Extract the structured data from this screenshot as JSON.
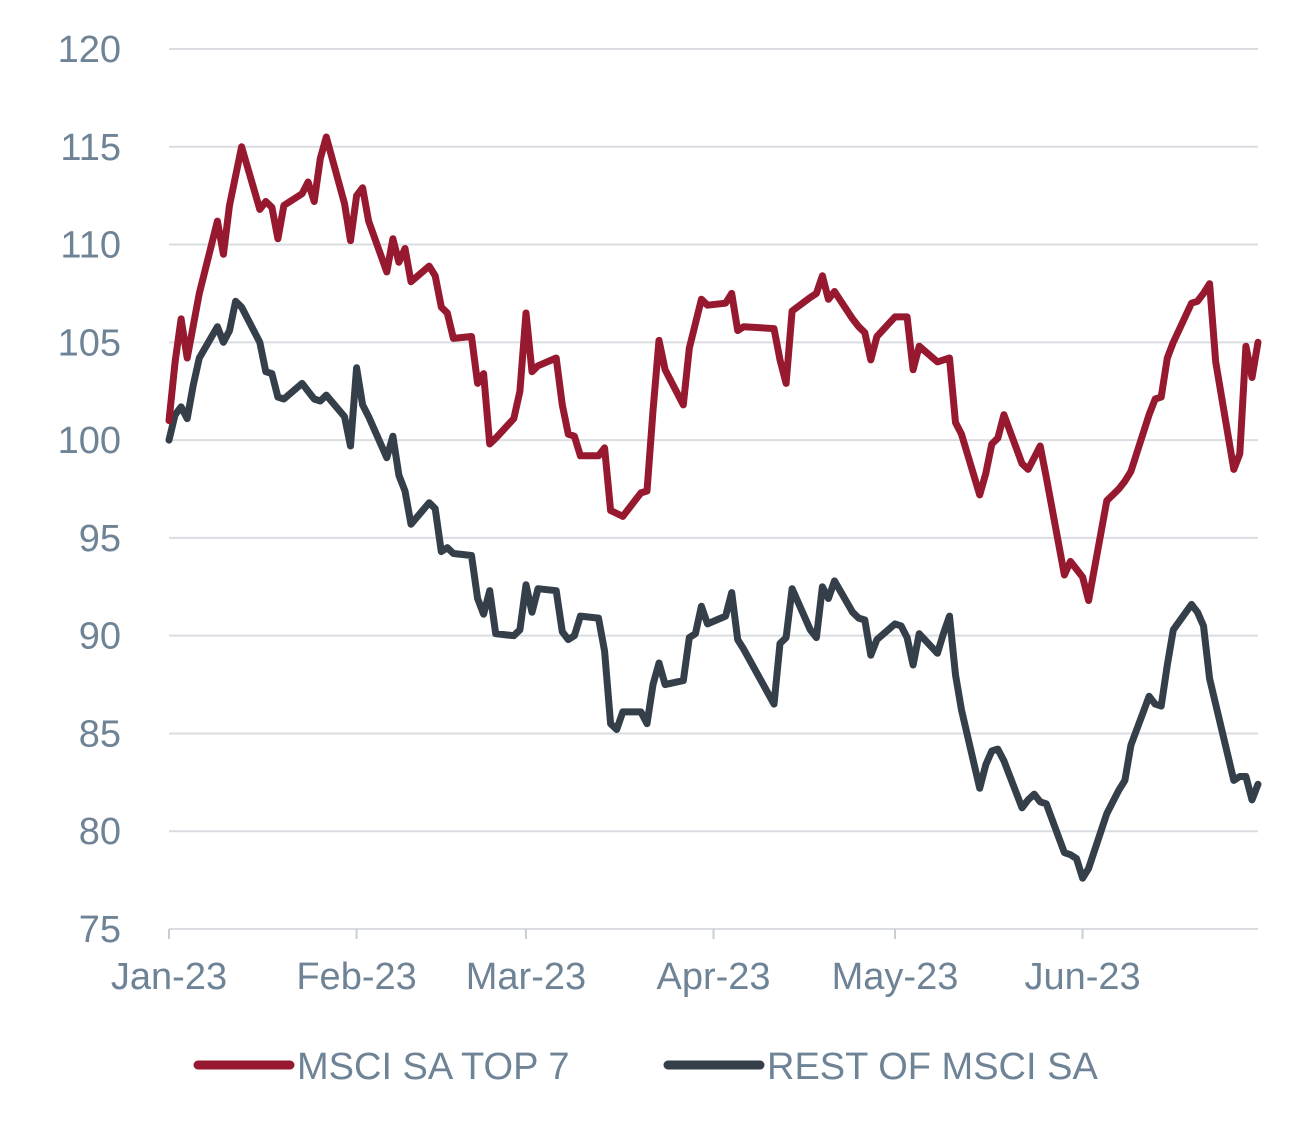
{
  "chart_data": {
    "type": "line",
    "title": "",
    "xlabel": "",
    "ylabel": "",
    "ylim": [
      75,
      120
    ],
    "yticks": [
      75,
      80,
      85,
      90,
      95,
      100,
      105,
      110,
      115,
      120
    ],
    "x_tick_labels": [
      "Jan-23",
      "Feb-23",
      "Mar-23",
      "Apr-23",
      "May-23",
      "Jun-23"
    ],
    "x_tick_dates": [
      "2023-01-01",
      "2023-02-01",
      "2023-03-01",
      "2023-04-01",
      "2023-05-01",
      "2023-06-01"
    ],
    "xlim": [
      "2023-01-01",
      "2023-06-30"
    ],
    "grid": true,
    "legend_position": "bottom",
    "series": [
      {
        "name": "MSCI SA TOP 7",
        "color": "#97192f",
        "points": [
          [
            "2023-01-01",
            101
          ],
          [
            "2023-01-02",
            104
          ],
          [
            "2023-01-03",
            106.2
          ],
          [
            "2023-01-04",
            104.2
          ],
          [
            "2023-01-06",
            107.5
          ],
          [
            "2023-01-09",
            111.2
          ],
          [
            "2023-01-10",
            109.5
          ],
          [
            "2023-01-11",
            112
          ],
          [
            "2023-01-13",
            115
          ],
          [
            "2023-01-16",
            111.8
          ],
          [
            "2023-01-17",
            112.2
          ],
          [
            "2023-01-18",
            111.9
          ],
          [
            "2023-01-19",
            110.3
          ],
          [
            "2023-01-20",
            112
          ],
          [
            "2023-01-23",
            112.6
          ],
          [
            "2023-01-24",
            113.2
          ],
          [
            "2023-01-25",
            112.2
          ],
          [
            "2023-01-26",
            114.4
          ],
          [
            "2023-01-27",
            115.5
          ],
          [
            "2023-01-30",
            112.1
          ],
          [
            "2023-01-31",
            110.2
          ],
          [
            "2023-02-01",
            112.5
          ],
          [
            "2023-02-02",
            112.9
          ],
          [
            "2023-02-03",
            111.2
          ],
          [
            "2023-02-06",
            108.6
          ],
          [
            "2023-02-07",
            110.3
          ],
          [
            "2023-02-08",
            109.1
          ],
          [
            "2023-02-09",
            109.8
          ],
          [
            "2023-02-10",
            108.1
          ],
          [
            "2023-02-13",
            108.9
          ],
          [
            "2023-02-14",
            108.4
          ],
          [
            "2023-02-15",
            106.8
          ],
          [
            "2023-02-16",
            106.5
          ],
          [
            "2023-02-17",
            105.2
          ],
          [
            "2023-02-20",
            105.3
          ],
          [
            "2023-02-21",
            102.9
          ],
          [
            "2023-02-22",
            103.4
          ],
          [
            "2023-02-23",
            99.8
          ],
          [
            "2023-02-24",
            100.1
          ],
          [
            "2023-02-27",
            101.1
          ],
          [
            "2023-02-28",
            102.5
          ],
          [
            "2023-03-01",
            106.5
          ],
          [
            "2023-03-02",
            103.5
          ],
          [
            "2023-03-03",
            103.8
          ],
          [
            "2023-03-06",
            104.2
          ],
          [
            "2023-03-07",
            101.8
          ],
          [
            "2023-03-08",
            100.3
          ],
          [
            "2023-03-09",
            100.2
          ],
          [
            "2023-03-10",
            99.2
          ],
          [
            "2023-03-13",
            99.2
          ],
          [
            "2023-03-14",
            99.6
          ],
          [
            "2023-03-15",
            96.4
          ],
          [
            "2023-03-17",
            96.1
          ],
          [
            "2023-03-20",
            97.3
          ],
          [
            "2023-03-21",
            97.4
          ],
          [
            "2023-03-22",
            101.5
          ],
          [
            "2023-03-23",
            105.1
          ],
          [
            "2023-03-24",
            103.6
          ],
          [
            "2023-03-27",
            101.8
          ],
          [
            "2023-03-28",
            104.7
          ],
          [
            "2023-03-30",
            107.2
          ],
          [
            "2023-03-31",
            106.9
          ],
          [
            "2023-04-03",
            107
          ],
          [
            "2023-04-04",
            107.5
          ],
          [
            "2023-04-05",
            105.6
          ],
          [
            "2023-04-06",
            105.8
          ],
          [
            "2023-04-11",
            105.7
          ],
          [
            "2023-04-12",
            104.1
          ],
          [
            "2023-04-13",
            102.9
          ],
          [
            "2023-04-14",
            106.6
          ],
          [
            "2023-04-17",
            107.3
          ],
          [
            "2023-04-18",
            107.5
          ],
          [
            "2023-04-19",
            108.4
          ],
          [
            "2023-04-20",
            107.2
          ],
          [
            "2023-04-21",
            107.6
          ],
          [
            "2023-04-24",
            106.2
          ],
          [
            "2023-04-25",
            105.8
          ],
          [
            "2023-04-26",
            105.5
          ],
          [
            "2023-04-27",
            104.1
          ],
          [
            "2023-04-28",
            105.3
          ],
          [
            "2023-05-01",
            106.3
          ],
          [
            "2023-05-03",
            106.3
          ],
          [
            "2023-05-04",
            103.6
          ],
          [
            "2023-05-05",
            104.8
          ],
          [
            "2023-05-08",
            104
          ],
          [
            "2023-05-10",
            104.2
          ],
          [
            "2023-05-11",
            100.9
          ],
          [
            "2023-05-12",
            100.3
          ],
          [
            "2023-05-15",
            97.2
          ],
          [
            "2023-05-16",
            98.3
          ],
          [
            "2023-05-17",
            99.8
          ],
          [
            "2023-05-18",
            100.1
          ],
          [
            "2023-05-19",
            101.3
          ],
          [
            "2023-05-22",
            98.8
          ],
          [
            "2023-05-23",
            98.5
          ],
          [
            "2023-05-24",
            99.1
          ],
          [
            "2023-05-25",
            99.7
          ],
          [
            "2023-05-26",
            98.1
          ],
          [
            "2023-05-29",
            93.1
          ],
          [
            "2023-05-30",
            93.8
          ],
          [
            "2023-05-31",
            93.4
          ],
          [
            "2023-06-01",
            93
          ],
          [
            "2023-06-02",
            91.8
          ],
          [
            "2023-06-05",
            96.9
          ],
          [
            "2023-06-06",
            97.2
          ],
          [
            "2023-06-07",
            97.5
          ],
          [
            "2023-06-08",
            97.9
          ],
          [
            "2023-06-09",
            98.4
          ],
          [
            "2023-06-12",
            101.3
          ],
          [
            "2023-06-13",
            102.1
          ],
          [
            "2023-06-14",
            102.2
          ],
          [
            "2023-06-15",
            104.2
          ],
          [
            "2023-06-16",
            105
          ],
          [
            "2023-06-19",
            107
          ],
          [
            "2023-06-20",
            107.1
          ],
          [
            "2023-06-21",
            107.5
          ],
          [
            "2023-06-22",
            108
          ],
          [
            "2023-06-23",
            104
          ],
          [
            "2023-06-26",
            98.5
          ],
          [
            "2023-06-27",
            99.3
          ],
          [
            "2023-06-28",
            104.8
          ],
          [
            "2023-06-29",
            103.2
          ],
          [
            "2023-06-30",
            105
          ]
        ]
      },
      {
        "name": "REST OF MSCI SA",
        "color": "#343f4a",
        "points": [
          [
            "2023-01-01",
            100
          ],
          [
            "2023-01-02",
            101.3
          ],
          [
            "2023-01-03",
            101.7
          ],
          [
            "2023-01-04",
            101.1
          ],
          [
            "2023-01-05",
            102.8
          ],
          [
            "2023-01-06",
            104.2
          ],
          [
            "2023-01-09",
            105.8
          ],
          [
            "2023-01-10",
            105
          ],
          [
            "2023-01-11",
            105.6
          ],
          [
            "2023-01-12",
            107.1
          ],
          [
            "2023-01-13",
            106.8
          ],
          [
            "2023-01-16",
            105
          ],
          [
            "2023-01-17",
            103.5
          ],
          [
            "2023-01-18",
            103.4
          ],
          [
            "2023-01-19",
            102.2
          ],
          [
            "2023-01-20",
            102.1
          ],
          [
            "2023-01-23",
            102.9
          ],
          [
            "2023-01-24",
            102.5
          ],
          [
            "2023-01-25",
            102.1
          ],
          [
            "2023-01-26",
            102
          ],
          [
            "2023-01-27",
            102.3
          ],
          [
            "2023-01-30",
            101.2
          ],
          [
            "2023-01-31",
            99.7
          ],
          [
            "2023-02-01",
            103.7
          ],
          [
            "2023-02-02",
            101.8
          ],
          [
            "2023-02-03",
            101.2
          ],
          [
            "2023-02-06",
            99.1
          ],
          [
            "2023-02-07",
            100.2
          ],
          [
            "2023-02-08",
            98.2
          ],
          [
            "2023-02-09",
            97.4
          ],
          [
            "2023-02-10",
            95.7
          ],
          [
            "2023-02-13",
            96.8
          ],
          [
            "2023-02-14",
            96.5
          ],
          [
            "2023-02-15",
            94.3
          ],
          [
            "2023-02-16",
            94.5
          ],
          [
            "2023-02-17",
            94.2
          ],
          [
            "2023-02-20",
            94.1
          ],
          [
            "2023-02-21",
            91.9
          ],
          [
            "2023-02-22",
            91.1
          ],
          [
            "2023-02-23",
            92.3
          ],
          [
            "2023-02-24",
            90.1
          ],
          [
            "2023-02-27",
            90
          ],
          [
            "2023-02-28",
            90.3
          ],
          [
            "2023-03-01",
            92.6
          ],
          [
            "2023-03-02",
            91.2
          ],
          [
            "2023-03-03",
            92.4
          ],
          [
            "2023-03-06",
            92.3
          ],
          [
            "2023-03-07",
            90.2
          ],
          [
            "2023-03-08",
            89.8
          ],
          [
            "2023-03-09",
            90
          ],
          [
            "2023-03-10",
            91
          ],
          [
            "2023-03-13",
            90.9
          ],
          [
            "2023-03-14",
            89.2
          ],
          [
            "2023-03-15",
            85.5
          ],
          [
            "2023-03-16",
            85.2
          ],
          [
            "2023-03-17",
            86.1
          ],
          [
            "2023-03-20",
            86.1
          ],
          [
            "2023-03-21",
            85.5
          ],
          [
            "2023-03-22",
            87.5
          ],
          [
            "2023-03-23",
            88.6
          ],
          [
            "2023-03-24",
            87.5
          ],
          [
            "2023-03-27",
            87.7
          ],
          [
            "2023-03-28",
            89.9
          ],
          [
            "2023-03-29",
            90.1
          ],
          [
            "2023-03-30",
            91.5
          ],
          [
            "2023-03-31",
            90.6
          ],
          [
            "2023-04-03",
            91
          ],
          [
            "2023-04-04",
            92.2
          ],
          [
            "2023-04-05",
            89.8
          ],
          [
            "2023-04-06",
            89.3
          ],
          [
            "2023-04-11",
            86.5
          ],
          [
            "2023-04-12",
            89.6
          ],
          [
            "2023-04-13",
            89.9
          ],
          [
            "2023-04-14",
            92.4
          ],
          [
            "2023-04-17",
            90.3
          ],
          [
            "2023-04-18",
            89.9
          ],
          [
            "2023-04-19",
            92.5
          ],
          [
            "2023-04-20",
            91.9
          ],
          [
            "2023-04-21",
            92.8
          ],
          [
            "2023-04-24",
            91.2
          ],
          [
            "2023-04-25",
            90.9
          ],
          [
            "2023-04-26",
            90.8
          ],
          [
            "2023-04-27",
            89
          ],
          [
            "2023-04-28",
            89.8
          ],
          [
            "2023-05-01",
            90.6
          ],
          [
            "2023-05-02",
            90.5
          ],
          [
            "2023-05-03",
            89.9
          ],
          [
            "2023-05-04",
            88.5
          ],
          [
            "2023-05-05",
            90.1
          ],
          [
            "2023-05-08",
            89.1
          ],
          [
            "2023-05-09",
            90.1
          ],
          [
            "2023-05-10",
            91
          ],
          [
            "2023-05-11",
            88
          ],
          [
            "2023-05-12",
            86.2
          ],
          [
            "2023-05-15",
            82.2
          ],
          [
            "2023-05-16",
            83.4
          ],
          [
            "2023-05-17",
            84.1
          ],
          [
            "2023-05-18",
            84.2
          ],
          [
            "2023-05-19",
            83.6
          ],
          [
            "2023-05-22",
            81.2
          ],
          [
            "2023-05-23",
            81.6
          ],
          [
            "2023-05-24",
            81.9
          ],
          [
            "2023-05-25",
            81.5
          ],
          [
            "2023-05-26",
            81.4
          ],
          [
            "2023-05-29",
            78.9
          ],
          [
            "2023-05-30",
            78.8
          ],
          [
            "2023-05-31",
            78.6
          ],
          [
            "2023-06-01",
            77.6
          ],
          [
            "2023-06-02",
            78.1
          ],
          [
            "2023-06-05",
            80.9
          ],
          [
            "2023-06-06",
            81.5
          ],
          [
            "2023-06-07",
            82.1
          ],
          [
            "2023-06-08",
            82.6
          ],
          [
            "2023-06-09",
            84.4
          ],
          [
            "2023-06-12",
            86.9
          ],
          [
            "2023-06-13",
            86.5
          ],
          [
            "2023-06-14",
            86.4
          ],
          [
            "2023-06-15",
            88.5
          ],
          [
            "2023-06-16",
            90.3
          ],
          [
            "2023-06-19",
            91.6
          ],
          [
            "2023-06-20",
            91.2
          ],
          [
            "2023-06-21",
            90.5
          ],
          [
            "2023-06-22",
            87.8
          ],
          [
            "2023-06-26",
            82.6
          ],
          [
            "2023-06-27",
            82.8
          ],
          [
            "2023-06-28",
            82.8
          ],
          [
            "2023-06-29",
            81.6
          ],
          [
            "2023-06-30",
            82.4
          ]
        ]
      }
    ]
  }
}
